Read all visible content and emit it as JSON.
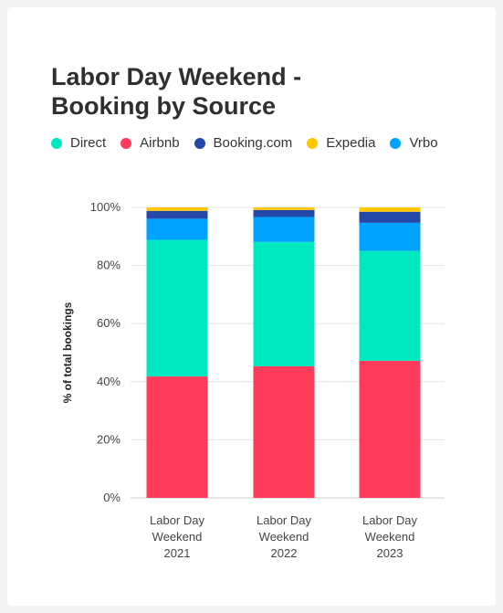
{
  "chart_data": {
    "type": "bar",
    "stacked": true,
    "title_lines": [
      "Labor Day Weekend -",
      "Booking by Source"
    ],
    "ylabel": "% of total bookings",
    "ylim": [
      0,
      100
    ],
    "yticks": [
      0,
      20,
      40,
      60,
      80,
      100
    ],
    "ytick_labels": [
      "0%",
      "20%",
      "40%",
      "60%",
      "80%",
      "100%"
    ],
    "grid": true,
    "legend_position": "top",
    "categories": [
      [
        "Labor Day",
        "Weekend",
        "2021"
      ],
      [
        "Labor Day",
        "Weekend",
        "2022"
      ],
      [
        "Labor Day",
        "Weekend",
        "2023"
      ]
    ],
    "series": [
      {
        "name": "Airbnb",
        "color": "#ff3b5c",
        "values": [
          41.8,
          45.3,
          47.2
        ]
      },
      {
        "name": "Direct",
        "color": "#00e8c0",
        "values": [
          47.0,
          42.8,
          37.8
        ]
      },
      {
        "name": "Vrbo",
        "color": "#00a2ff",
        "values": [
          7.3,
          8.6,
          9.7
        ]
      },
      {
        "name": "Booking.com",
        "color": "#2447a8",
        "values": [
          2.7,
          2.4,
          3.8
        ]
      },
      {
        "name": "Expedia",
        "color": "#ffc700",
        "values": [
          1.2,
          0.9,
          1.5
        ]
      }
    ],
    "legend": [
      {
        "name": "Direct",
        "color": "#00e8c0"
      },
      {
        "name": "Airbnb",
        "color": "#ff3b5c"
      },
      {
        "name": "Booking.com",
        "color": "#2447a8"
      },
      {
        "name": "Expedia",
        "color": "#ffc700"
      },
      {
        "name": "Vrbo",
        "color": "#00a2ff"
      }
    ]
  }
}
